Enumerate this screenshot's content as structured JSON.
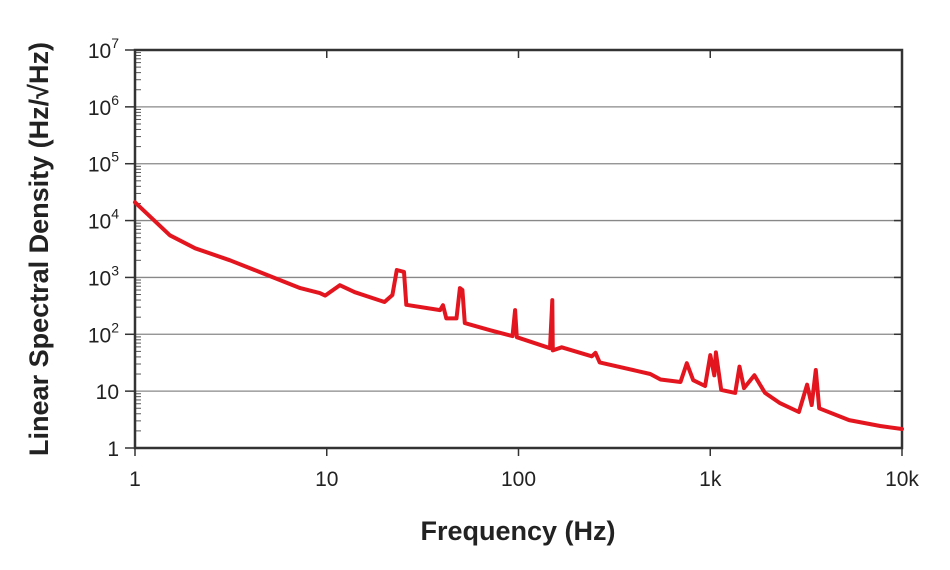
{
  "chart_data": {
    "type": "line",
    "title": "",
    "xlabel": "Frequency (Hz)",
    "ylabel": "Linear Spectral Density (Hz/√Hz)",
    "xscale": "log",
    "yscale": "log",
    "xlim": [
      1,
      10000
    ],
    "ylim": [
      1,
      10000000
    ],
    "grid": "horizontal",
    "legend": "none",
    "x_ticks": [
      {
        "value": 1,
        "label": "1"
      },
      {
        "value": 10,
        "label": "10"
      },
      {
        "value": 100,
        "label": "100"
      },
      {
        "value": 1000,
        "label": "1k"
      },
      {
        "value": 10000,
        "label": "10k"
      }
    ],
    "y_ticks": [
      {
        "value": 1,
        "base": "1",
        "exp": ""
      },
      {
        "value": 10,
        "base": "10",
        "exp": ""
      },
      {
        "value": 100,
        "base": "10",
        "exp": "2"
      },
      {
        "value": 1000,
        "base": "10",
        "exp": "3"
      },
      {
        "value": 10000,
        "base": "10",
        "exp": "4"
      },
      {
        "value": 100000,
        "base": "10",
        "exp": "5"
      },
      {
        "value": 1000000,
        "base": "10",
        "exp": "6"
      },
      {
        "value": 10000000,
        "base": "10",
        "exp": "7"
      }
    ],
    "series": [
      {
        "color": "#e3161f",
        "x": [
          1,
          1.52,
          2.06,
          3.13,
          4.48,
          7.27,
          9.2,
          9.8,
          11.7,
          14,
          20,
          22,
          23.2,
          25.3,
          26,
          39,
          40.4,
          42,
          47.5,
          49.5,
          51,
          52.5,
          71,
          93,
          96,
          98,
          146,
          150,
          151,
          168,
          241,
          252,
          265,
          487,
          550,
          700,
          755,
          815,
          940,
          1000,
          1050,
          1070,
          1140,
          1350,
          1420,
          1500,
          1700,
          1930,
          2300,
          2900,
          3200,
          3380,
          3550,
          3700,
          5300,
          7700,
          10000
        ],
        "y": [
          21000,
          5500,
          3250,
          2000,
          1240,
          650,
          530,
          480,
          730,
          550,
          370,
          490,
          1350,
          1250,
          330,
          266,
          325,
          190,
          190,
          650,
          600,
          157,
          118,
          93,
          266,
          89,
          57,
          400,
          52,
          59,
          41,
          47,
          32,
          20,
          16,
          14.5,
          31,
          15.6,
          12.3,
          43,
          19,
          48,
          10.5,
          9.3,
          27,
          11.3,
          19,
          9.3,
          6.2,
          4.3,
          13,
          5.7,
          23.5,
          5,
          3.1,
          2.44,
          2.16
        ]
      }
    ]
  }
}
